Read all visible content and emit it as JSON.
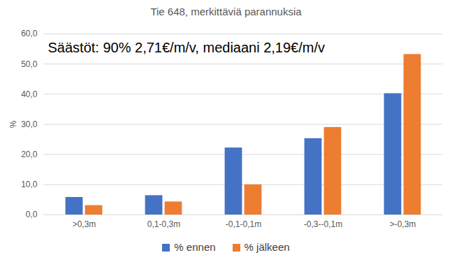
{
  "chart_data": {
    "type": "bar",
    "title": "Tie 648, merkittäviä parannuksia",
    "annotation": "Säästöt: 90% 2,71€/m/v, mediaani 2,19€/m/v",
    "y_label": "%",
    "categories": [
      ">0,3m",
      "0,1-0,3m",
      "-0,1-0,1m",
      "-0,3--0,1m",
      ">-0,3m"
    ],
    "series": [
      {
        "name": "% ennen",
        "color": "#4472c4",
        "values": [
          5.8,
          6.4,
          22.2,
          25.3,
          40.2
        ]
      },
      {
        "name": "% jälkeen",
        "color": "#ed7d31",
        "values": [
          3.1,
          4.3,
          10.0,
          29.0,
          53.2
        ]
      }
    ],
    "ylim": [
      0,
      60
    ],
    "yticks": [
      {
        "value": 0,
        "label": "0,0"
      },
      {
        "value": 10,
        "label": "10,0"
      },
      {
        "value": 20,
        "label": "20,0"
      },
      {
        "value": 30,
        "label": "30,0"
      },
      {
        "value": 40,
        "label": "40,0"
      },
      {
        "value": 50,
        "label": "50,0"
      },
      {
        "value": 60,
        "label": "60,0"
      }
    ],
    "grid": true,
    "legend": "bottom"
  }
}
